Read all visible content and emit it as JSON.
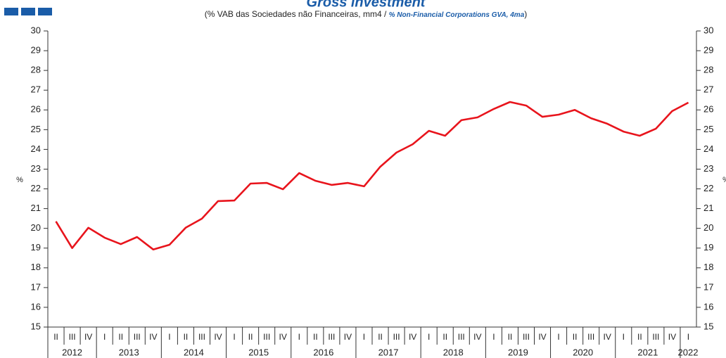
{
  "chart_data": {
    "type": "line",
    "title": "Gross investment",
    "subtitle": [
      "(% VAB das Sociedades não Financeiras, mm4 / ",
      "% Non-Financial Corporations GVA, 4ma",
      ")"
    ],
    "ylabel": "%",
    "y2label": "%",
    "categories": [
      "II",
      "III",
      "IV",
      "I",
      "II",
      "III",
      "IV",
      "I",
      "II",
      "III",
      "IV",
      "I",
      "II",
      "III",
      "IV",
      "I",
      "II",
      "III",
      "IV",
      "I",
      "II",
      "III",
      "IV",
      "I",
      "II",
      "III",
      "IV",
      "I",
      "II",
      "III",
      "IV",
      "I",
      "II",
      "III",
      "IV",
      "I",
      "II",
      "III",
      "IV",
      "I"
    ],
    "years": [
      "2012",
      "2013",
      "2014",
      "2015",
      "2016",
      "2017",
      "2018",
      "2019",
      "2020",
      "2021",
      "2022"
    ],
    "series": [
      {
        "name": "Gross investment",
        "color": "#e8141c",
        "values": [
          20.35,
          19.0,
          20.03,
          19.53,
          19.2,
          19.56,
          18.93,
          19.17,
          20.03,
          20.49,
          21.38,
          21.41,
          22.27,
          22.3,
          21.98,
          22.8,
          22.41,
          22.2,
          22.3,
          22.13,
          23.12,
          23.84,
          24.26,
          24.94,
          24.69,
          25.48,
          25.62,
          26.05,
          26.4,
          26.22,
          25.65,
          25.76,
          26.0,
          25.58,
          25.3,
          24.9,
          24.69,
          25.05,
          25.94,
          26.37
        ]
      }
    ],
    "ylim": [
      15,
      30
    ],
    "yticks": [
      15,
      16,
      17,
      18,
      19,
      20,
      21,
      22,
      23,
      24,
      25,
      26,
      27,
      28,
      29,
      30
    ],
    "y2lim": [
      15,
      30
    ],
    "y2ticks": [
      15,
      16,
      17,
      18,
      19,
      20,
      21,
      22,
      23,
      24,
      25,
      26,
      27,
      28,
      29,
      30
    ],
    "grid": false
  }
}
